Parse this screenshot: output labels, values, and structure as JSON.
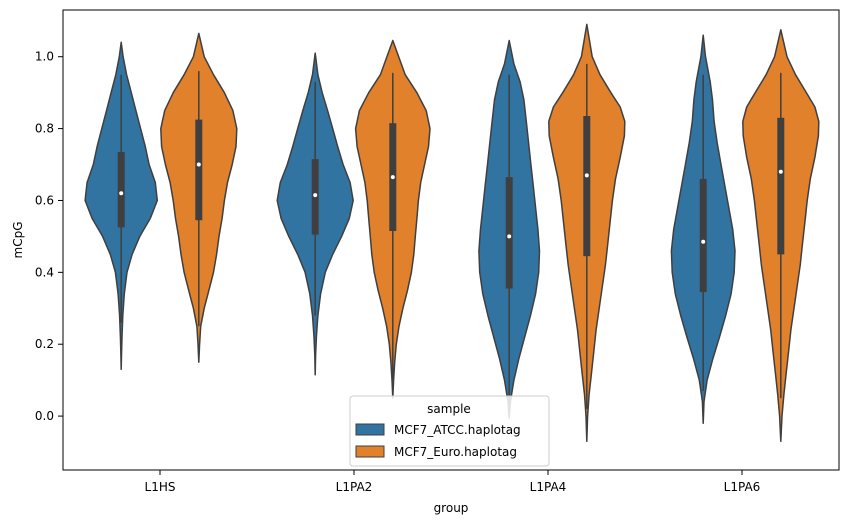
{
  "chart_data": {
    "type": "violin",
    "xlabel": "group",
    "ylabel": "mCpG",
    "categories": [
      "L1HS",
      "L1PA2",
      "L1PA4",
      "L1PA6"
    ],
    "ylim": [
      -0.15,
      1.13
    ],
    "yticks": [
      "0.0",
      "0.2",
      "0.4",
      "0.6",
      "0.8",
      "1.0"
    ],
    "grid": false,
    "legend": {
      "title": "sample",
      "placement": "lower-center",
      "entries": [
        "MCF7_ATCC.haplotag",
        "MCF7_Euro.haplotag"
      ]
    },
    "series": [
      {
        "name": "MCF7_ATCC.haplotag",
        "color": "#3274a1",
        "violins": [
          {
            "min": 0.13,
            "max": 1.04,
            "q1": 0.525,
            "median": 0.62,
            "q3": 0.735,
            "whisker_low": 0.26,
            "whisker_high": 0.95,
            "profile": [
              [
                0.13,
                0.0
              ],
              [
                0.18,
                0.01
              ],
              [
                0.22,
                0.02
              ],
              [
                0.28,
                0.04
              ],
              [
                0.34,
                0.08
              ],
              [
                0.4,
                0.15
              ],
              [
                0.45,
                0.28
              ],
              [
                0.5,
                0.48
              ],
              [
                0.55,
                0.75
              ],
              [
                0.6,
                0.93
              ],
              [
                0.65,
                0.88
              ],
              [
                0.7,
                0.72
              ],
              [
                0.75,
                0.62
              ],
              [
                0.8,
                0.5
              ],
              [
                0.85,
                0.38
              ],
              [
                0.9,
                0.26
              ],
              [
                0.95,
                0.14
              ],
              [
                1.0,
                0.05
              ],
              [
                1.04,
                0.0
              ]
            ]
          },
          {
            "min": 0.115,
            "max": 1.01,
            "q1": 0.505,
            "median": 0.615,
            "q3": 0.715,
            "whisker_low": 0.28,
            "whisker_high": 0.93,
            "profile": [
              [
                0.115,
                0.0
              ],
              [
                0.17,
                0.01
              ],
              [
                0.22,
                0.03
              ],
              [
                0.28,
                0.07
              ],
              [
                0.34,
                0.14
              ],
              [
                0.4,
                0.26
              ],
              [
                0.45,
                0.45
              ],
              [
                0.5,
                0.68
              ],
              [
                0.55,
                0.88
              ],
              [
                0.6,
                0.98
              ],
              [
                0.65,
                0.9
              ],
              [
                0.7,
                0.72
              ],
              [
                0.75,
                0.58
              ],
              [
                0.8,
                0.45
              ],
              [
                0.85,
                0.32
              ],
              [
                0.9,
                0.18
              ],
              [
                0.95,
                0.07
              ],
              [
                1.01,
                0.0
              ]
            ]
          },
          {
            "min": -0.005,
            "max": 1.045,
            "q1": 0.355,
            "median": 0.5,
            "q3": 0.665,
            "whisker_low": 0.0,
            "whisker_high": 0.95,
            "profile": [
              [
                -0.005,
                0.0
              ],
              [
                0.04,
                0.03
              ],
              [
                0.1,
                0.12
              ],
              [
                0.16,
                0.25
              ],
              [
                0.22,
                0.4
              ],
              [
                0.28,
                0.55
              ],
              [
                0.34,
                0.68
              ],
              [
                0.4,
                0.76
              ],
              [
                0.46,
                0.78
              ],
              [
                0.52,
                0.74
              ],
              [
                0.58,
                0.68
              ],
              [
                0.64,
                0.62
              ],
              [
                0.7,
                0.56
              ],
              [
                0.76,
                0.5
              ],
              [
                0.82,
                0.44
              ],
              [
                0.88,
                0.38
              ],
              [
                0.93,
                0.28
              ],
              [
                0.98,
                0.12
              ],
              [
                1.045,
                0.0
              ]
            ]
          },
          {
            "min": -0.02,
            "max": 1.06,
            "q1": 0.345,
            "median": 0.485,
            "q3": 0.66,
            "whisker_low": 0.07,
            "whisker_high": 0.95,
            "profile": [
              [
                -0.02,
                0.0
              ],
              [
                0.04,
                0.02
              ],
              [
                0.1,
                0.1
              ],
              [
                0.16,
                0.25
              ],
              [
                0.22,
                0.42
              ],
              [
                0.28,
                0.58
              ],
              [
                0.34,
                0.72
              ],
              [
                0.4,
                0.8
              ],
              [
                0.46,
                0.82
              ],
              [
                0.52,
                0.76
              ],
              [
                0.58,
                0.66
              ],
              [
                0.64,
                0.56
              ],
              [
                0.7,
                0.46
              ],
              [
                0.76,
                0.36
              ],
              [
                0.82,
                0.28
              ],
              [
                0.88,
                0.24
              ],
              [
                0.93,
                0.18
              ],
              [
                1.0,
                0.06
              ],
              [
                1.06,
                0.0
              ]
            ]
          }
        ]
      },
      {
        "name": "MCF7_Euro.haplotag",
        "color": "#e1812c",
        "violins": [
          {
            "min": 0.15,
            "max": 1.065,
            "q1": 0.545,
            "median": 0.7,
            "q3": 0.825,
            "whisker_low": 0.25,
            "whisker_high": 0.96,
            "profile": [
              [
                0.15,
                0.0
              ],
              [
                0.2,
                0.02
              ],
              [
                0.25,
                0.05
              ],
              [
                0.3,
                0.14
              ],
              [
                0.35,
                0.26
              ],
              [
                0.4,
                0.38
              ],
              [
                0.45,
                0.46
              ],
              [
                0.5,
                0.52
              ],
              [
                0.55,
                0.6
              ],
              [
                0.6,
                0.66
              ],
              [
                0.65,
                0.74
              ],
              [
                0.7,
                0.86
              ],
              [
                0.75,
                0.96
              ],
              [
                0.8,
                0.98
              ],
              [
                0.85,
                0.88
              ],
              [
                0.9,
                0.66
              ],
              [
                0.95,
                0.38
              ],
              [
                1.0,
                0.14
              ],
              [
                1.065,
                0.0
              ]
            ]
          },
          {
            "min": 0.05,
            "max": 1.045,
            "q1": 0.515,
            "median": 0.665,
            "q3": 0.815,
            "whisker_low": 0.1,
            "whisker_high": 0.955,
            "profile": [
              [
                0.05,
                0.0
              ],
              [
                0.1,
                0.02
              ],
              [
                0.15,
                0.05
              ],
              [
                0.2,
                0.09
              ],
              [
                0.25,
                0.16
              ],
              [
                0.3,
                0.26
              ],
              [
                0.35,
                0.38
              ],
              [
                0.4,
                0.48
              ],
              [
                0.45,
                0.54
              ],
              [
                0.5,
                0.58
              ],
              [
                0.55,
                0.62
              ],
              [
                0.6,
                0.66
              ],
              [
                0.65,
                0.72
              ],
              [
                0.7,
                0.82
              ],
              [
                0.75,
                0.92
              ],
              [
                0.8,
                0.96
              ],
              [
                0.85,
                0.86
              ],
              [
                0.9,
                0.62
              ],
              [
                0.95,
                0.32
              ],
              [
                1.045,
                0.0
              ]
            ]
          },
          {
            "min": -0.07,
            "max": 1.09,
            "q1": 0.445,
            "median": 0.67,
            "q3": 0.835,
            "whisker_low": 0.02,
            "whisker_high": 0.98,
            "profile": [
              [
                -0.07,
                0.0
              ],
              [
                0.0,
                0.02
              ],
              [
                0.06,
                0.06
              ],
              [
                0.12,
                0.12
              ],
              [
                0.18,
                0.18
              ],
              [
                0.24,
                0.24
              ],
              [
                0.3,
                0.32
              ],
              [
                0.36,
                0.4
              ],
              [
                0.42,
                0.48
              ],
              [
                0.48,
                0.54
              ],
              [
                0.54,
                0.6
              ],
              [
                0.6,
                0.66
              ],
              [
                0.66,
                0.74
              ],
              [
                0.72,
                0.86
              ],
              [
                0.78,
                0.97
              ],
              [
                0.82,
                0.98
              ],
              [
                0.86,
                0.86
              ],
              [
                0.9,
                0.62
              ],
              [
                0.95,
                0.34
              ],
              [
                1.0,
                0.14
              ],
              [
                1.09,
                0.0
              ]
            ]
          },
          {
            "min": -0.07,
            "max": 1.075,
            "q1": 0.45,
            "median": 0.68,
            "q3": 0.83,
            "whisker_low": 0.05,
            "whisker_high": 0.955,
            "profile": [
              [
                -0.07,
                0.0
              ],
              [
                0.0,
                0.03
              ],
              [
                0.06,
                0.08
              ],
              [
                0.12,
                0.14
              ],
              [
                0.18,
                0.2
              ],
              [
                0.24,
                0.26
              ],
              [
                0.3,
                0.34
              ],
              [
                0.36,
                0.42
              ],
              [
                0.42,
                0.5
              ],
              [
                0.48,
                0.56
              ],
              [
                0.54,
                0.62
              ],
              [
                0.6,
                0.68
              ],
              [
                0.66,
                0.76
              ],
              [
                0.72,
                0.88
              ],
              [
                0.78,
                0.97
              ],
              [
                0.82,
                0.98
              ],
              [
                0.86,
                0.88
              ],
              [
                0.9,
                0.66
              ],
              [
                0.95,
                0.38
              ],
              [
                1.0,
                0.16
              ],
              [
                1.075,
                0.0
              ]
            ]
          }
        ]
      }
    ]
  }
}
